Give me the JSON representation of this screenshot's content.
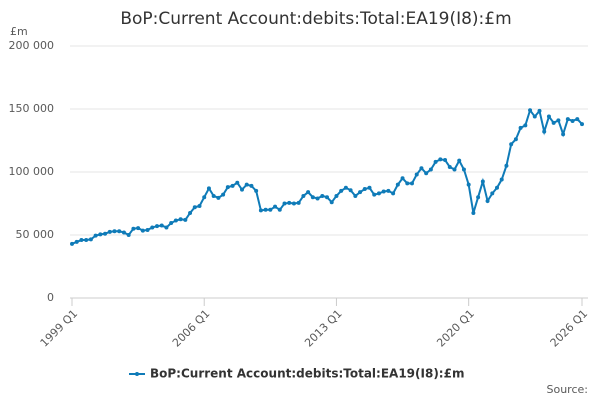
{
  "chart_data": {
    "type": "line",
    "title": "BoP:Current Account:debits:Total:EA19(I8):£m",
    "y_label": "£m",
    "source": "Source:",
    "categories": [
      "1999 Q1",
      null,
      null,
      null,
      null,
      null,
      null,
      null,
      null,
      null,
      null,
      null,
      null,
      null,
      null,
      null,
      null,
      null,
      null,
      null,
      null,
      null,
      null,
      null,
      null,
      null,
      null,
      null,
      "2006 Q1",
      null,
      null,
      null,
      null,
      null,
      null,
      null,
      null,
      null,
      null,
      null,
      null,
      null,
      null,
      null,
      null,
      null,
      null,
      null,
      null,
      null,
      null,
      null,
      null,
      null,
      null,
      null,
      "2013 Q1",
      null,
      null,
      null,
      null,
      null,
      null,
      null,
      null,
      null,
      null,
      null,
      null,
      null,
      null,
      null,
      null,
      null,
      null,
      null,
      null,
      null,
      null,
      null,
      null,
      null,
      null,
      null,
      "2020 Q1",
      null,
      null,
      null,
      null,
      null,
      null,
      null,
      null,
      null,
      null,
      null,
      null,
      null,
      null,
      null,
      null,
      null,
      null,
      null,
      null,
      null,
      null,
      null,
      "2026 Q1"
    ],
    "series": [
      {
        "name": "BoP:Current Account:debits:Total:EA19(I8):£m",
        "color": "#0f7bb8",
        "values": [
          43000,
          44500,
          46000,
          46000,
          46500,
          49500,
          50500,
          51000,
          52500,
          53000,
          53000,
          52000,
          50000,
          55000,
          55500,
          53500,
          54000,
          56000,
          57000,
          57500,
          56000,
          59500,
          61500,
          62500,
          62000,
          67500,
          72000,
          73000,
          80000,
          87000,
          81000,
          79500,
          82000,
          88000,
          89000,
          91500,
          86000,
          90000,
          89000,
          85000,
          69500,
          70000,
          70000,
          72500,
          70000,
          75000,
          75500,
          75000,
          75500,
          81000,
          84000,
          80000,
          79000,
          81000,
          80000,
          76000,
          81000,
          85000,
          87500,
          85500,
          81000,
          84000,
          86500,
          87500,
          82000,
          83000,
          84500,
          85000,
          83000,
          90000,
          95000,
          91000,
          91000,
          98000,
          103000,
          99000,
          102000,
          108000,
          110000,
          109500,
          104000,
          102000,
          109000,
          102000,
          90000,
          67500,
          80000,
          92500,
          77000,
          83000,
          87500,
          94000,
          105000,
          122000,
          126000,
          135000,
          137000,
          149000,
          144000,
          148500,
          132000,
          144000,
          139000,
          141000,
          130000,
          142000,
          140500,
          142000,
          138000
        ]
      }
    ],
    "ylim": [
      0,
      200000
    ],
    "yticks": [
      0,
      {
        "value": 50000,
        "label": "50 000"
      },
      {
        "value": 100000,
        "label": "100 000"
      },
      {
        "value": 150000,
        "label": "150 000"
      },
      {
        "value": 200000,
        "label": "200 000"
      }
    ],
    "grid": true
  }
}
